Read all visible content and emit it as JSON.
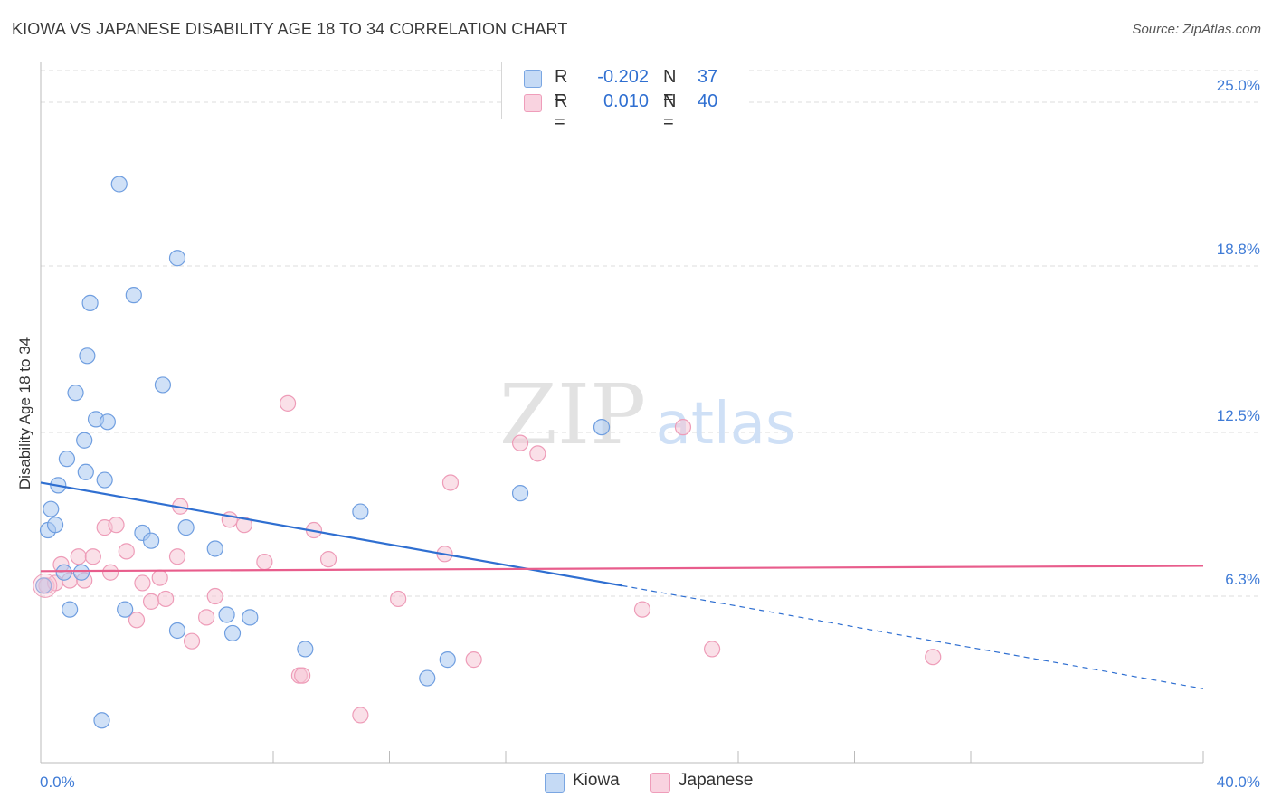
{
  "chart_data": {
    "type": "scatter",
    "title": "KIOWA VS JAPANESE DISABILITY AGE 18 TO 34 CORRELATION CHART",
    "source": "Source: ZipAtlas.com",
    "ylabel": "Disability Age 18 to 34",
    "xlabel": "",
    "xlim": [
      0,
      40
    ],
    "ylim": [
      0,
      26.3
    ],
    "x_tick_labels": {
      "min": "0.0%",
      "max": "40.0%"
    },
    "y_ticks": [
      {
        "value": 6.3,
        "label": "6.3%"
      },
      {
        "value": 12.5,
        "label": "12.5%"
      },
      {
        "value": 18.8,
        "label": "18.8%"
      },
      {
        "value": 25.0,
        "label": "25.0%"
      }
    ],
    "watermark": {
      "zip": "ZIP",
      "atlas": "atlas"
    },
    "legend": {
      "rows": [
        {
          "r_label": "R =",
          "r_value": "-0.202",
          "n_label": "N =",
          "n_value": "37"
        },
        {
          "r_label": "R =",
          "r_value": "0.010",
          "n_label": "N =",
          "n_value": "40"
        }
      ]
    },
    "series": [
      {
        "name": "Kiowa",
        "fill": "#a9c8f0",
        "stroke": "#6f9ee0",
        "line_color": "#2f6fd1",
        "trend": {
          "x0": 0,
          "y0": 10.6,
          "x1": 20,
          "y1": 6.7,
          "dash_to_x": 40,
          "dash_to_y": 2.8
        },
        "points": [
          [
            0.1,
            6.7
          ],
          [
            0.25,
            8.8
          ],
          [
            0.35,
            9.6
          ],
          [
            0.5,
            9.0
          ],
          [
            0.6,
            10.5
          ],
          [
            0.8,
            7.2
          ],
          [
            0.9,
            11.5
          ],
          [
            1.0,
            5.8
          ],
          [
            1.2,
            14.0
          ],
          [
            1.4,
            7.2
          ],
          [
            1.5,
            12.2
          ],
          [
            1.55,
            11.0
          ],
          [
            1.6,
            15.4
          ],
          [
            1.7,
            17.4
          ],
          [
            1.9,
            13.0
          ],
          [
            2.1,
            1.6
          ],
          [
            2.2,
            10.7
          ],
          [
            2.3,
            12.9
          ],
          [
            2.7,
            21.9
          ],
          [
            2.9,
            5.8
          ],
          [
            3.2,
            17.7
          ],
          [
            3.5,
            8.7
          ],
          [
            3.8,
            8.4
          ],
          [
            4.2,
            14.3
          ],
          [
            4.7,
            5.0
          ],
          [
            4.7,
            19.1
          ],
          [
            5.0,
            8.9
          ],
          [
            6.0,
            8.1
          ],
          [
            6.4,
            5.6
          ],
          [
            6.6,
            4.9
          ],
          [
            7.2,
            5.5
          ],
          [
            9.1,
            4.3
          ],
          [
            11.0,
            9.5
          ],
          [
            13.3,
            3.2
          ],
          [
            14.0,
            3.9
          ],
          [
            16.5,
            10.2
          ],
          [
            19.3,
            12.7
          ]
        ]
      },
      {
        "name": "Japanese",
        "fill": "#f6c6d6",
        "stroke": "#ee9cb8",
        "line_color": "#e85d8c",
        "trend": {
          "x0": 0,
          "y0": 7.25,
          "x1": 40,
          "y1": 7.45
        },
        "points": [
          [
            0.2,
            6.7
          ],
          [
            0.5,
            6.8
          ],
          [
            0.7,
            7.5
          ],
          [
            1.0,
            6.9
          ],
          [
            1.3,
            7.8
          ],
          [
            1.5,
            6.9
          ],
          [
            1.8,
            7.8
          ],
          [
            2.2,
            8.9
          ],
          [
            2.4,
            7.2
          ],
          [
            2.6,
            9.0
          ],
          [
            2.95,
            8.0
          ],
          [
            3.3,
            5.4
          ],
          [
            3.5,
            6.8
          ],
          [
            3.8,
            6.1
          ],
          [
            4.1,
            7.0
          ],
          [
            4.3,
            6.2
          ],
          [
            4.7,
            7.8
          ],
          [
            4.8,
            9.7
          ],
          [
            5.2,
            4.6
          ],
          [
            5.7,
            5.5
          ],
          [
            6.0,
            6.3
          ],
          [
            6.5,
            9.2
          ],
          [
            7.0,
            9.0
          ],
          [
            7.7,
            7.6
          ],
          [
            8.5,
            13.6
          ],
          [
            8.9,
            3.3
          ],
          [
            9.0,
            3.3
          ],
          [
            9.4,
            8.8
          ],
          [
            9.9,
            7.7
          ],
          [
            11.0,
            1.8
          ],
          [
            12.3,
            6.2
          ],
          [
            13.9,
            7.9
          ],
          [
            14.1,
            10.6
          ],
          [
            14.9,
            3.9
          ],
          [
            16.5,
            12.1
          ],
          [
            17.1,
            11.7
          ],
          [
            20.7,
            5.8
          ],
          [
            22.1,
            12.7
          ],
          [
            23.1,
            4.3
          ],
          [
            30.7,
            4.0
          ]
        ]
      }
    ]
  }
}
